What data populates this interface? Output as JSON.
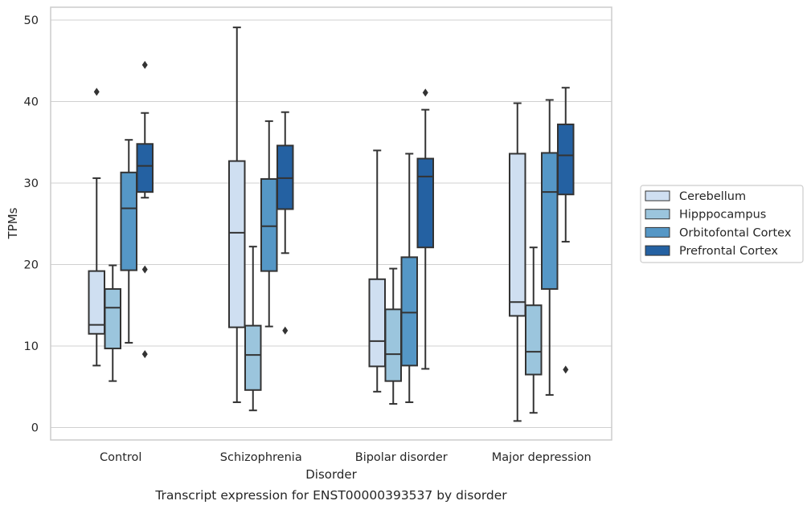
{
  "chart_data": {
    "type": "box",
    "categories": [
      "Control",
      "Schizophrenia",
      "Bipolar disorder",
      "Major depression"
    ],
    "xlabel": "Disorder",
    "ylabel": "TPMs",
    "caption": "Transcript expression for ENST00000393537 by disorder",
    "ylim": [
      -1.5,
      51.5
    ],
    "yticks": [
      0,
      10,
      20,
      30,
      40,
      50
    ],
    "grid": true,
    "legend_position": "right",
    "colors": {
      "line": "#333333",
      "grid": "#d0d0d0",
      "frame": "#cccccc"
    },
    "series": [
      {
        "name": "Cerebellum",
        "color": "#cfdff1",
        "boxes": [
          {
            "whislo": 7.6,
            "q1": 11.5,
            "med": 12.6,
            "q3": 19.2,
            "whishi": 30.6,
            "fliers": [
              41.2
            ]
          },
          {
            "whislo": 3.1,
            "q1": 12.3,
            "med": 23.9,
            "q3": 32.7,
            "whishi": 49.1,
            "fliers": []
          },
          {
            "whislo": 4.4,
            "q1": 7.5,
            "med": 10.6,
            "q3": 18.2,
            "whishi": 34.0,
            "fliers": []
          },
          {
            "whislo": 0.8,
            "q1": 13.7,
            "med": 15.4,
            "q3": 33.6,
            "whishi": 39.8,
            "fliers": []
          }
        ]
      },
      {
        "name": "Hipppocampus",
        "color": "#9bc5dd",
        "boxes": [
          {
            "whislo": 5.7,
            "q1": 9.7,
            "med": 14.7,
            "q3": 17.0,
            "whishi": 19.9,
            "fliers": []
          },
          {
            "whislo": 2.1,
            "q1": 4.6,
            "med": 8.9,
            "q3": 12.5,
            "whishi": 22.2,
            "fliers": []
          },
          {
            "whislo": 2.9,
            "q1": 5.7,
            "med": 9.0,
            "q3": 14.5,
            "whishi": 19.5,
            "fliers": []
          },
          {
            "whislo": 1.8,
            "q1": 6.5,
            "med": 9.3,
            "q3": 15.0,
            "whishi": 22.1,
            "fliers": []
          }
        ]
      },
      {
        "name": "Orbitofontal Cortex",
        "color": "#5597c6",
        "boxes": [
          {
            "whislo": 10.4,
            "q1": 19.3,
            "med": 26.9,
            "q3": 31.3,
            "whishi": 35.3,
            "fliers": []
          },
          {
            "whislo": 12.4,
            "q1": 19.2,
            "med": 24.7,
            "q3": 30.5,
            "whishi": 37.6,
            "fliers": []
          },
          {
            "whislo": 3.1,
            "q1": 7.6,
            "med": 14.1,
            "q3": 20.9,
            "whishi": 33.6,
            "fliers": []
          },
          {
            "whislo": 4.0,
            "q1": 17.0,
            "med": 28.9,
            "q3": 33.7,
            "whishi": 40.2,
            "fliers": []
          }
        ]
      },
      {
        "name": "Prefrontal Cortex",
        "color": "#2461a2",
        "boxes": [
          {
            "whislo": 28.2,
            "q1": 28.9,
            "med": 32.1,
            "q3": 34.8,
            "whishi": 38.6,
            "fliers": [
              44.5,
              19.4,
              9.0
            ]
          },
          {
            "whislo": 21.4,
            "q1": 26.8,
            "med": 30.6,
            "q3": 34.6,
            "whishi": 38.7,
            "fliers": [
              11.9
            ]
          },
          {
            "whislo": 7.2,
            "q1": 22.1,
            "med": 30.8,
            "q3": 33.0,
            "whishi": 39.0,
            "fliers": [
              41.1
            ]
          },
          {
            "whislo": 22.8,
            "q1": 28.6,
            "med": 33.4,
            "q3": 37.2,
            "whishi": 41.7,
            "fliers": [
              7.1
            ]
          }
        ]
      }
    ]
  }
}
